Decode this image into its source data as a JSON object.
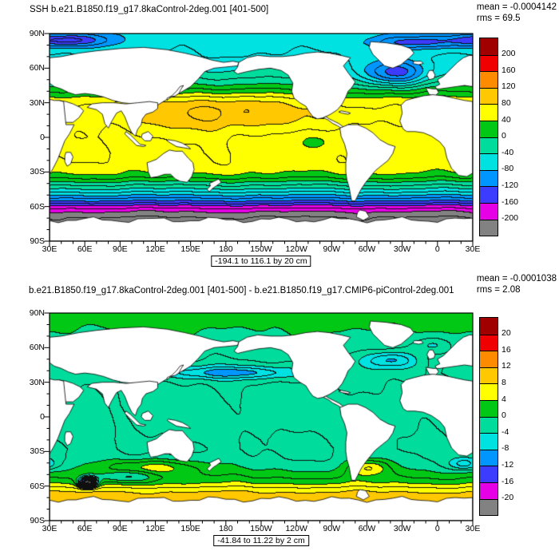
{
  "page": {
    "bg": "#ffffff"
  },
  "axes": {
    "x_ticks": [
      {
        "label": "30E",
        "lon": 30
      },
      {
        "label": "60E",
        "lon": 60
      },
      {
        "label": "90E",
        "lon": 90
      },
      {
        "label": "120E",
        "lon": 120
      },
      {
        "label": "150E",
        "lon": 150
      },
      {
        "label": "180",
        "lon": 180
      },
      {
        "label": "150W",
        "lon": 210
      },
      {
        "label": "120W",
        "lon": 240
      },
      {
        "label": "90W",
        "lon": 270
      },
      {
        "label": "60W",
        "lon": 300
      },
      {
        "label": "30W",
        "lon": 330
      },
      {
        "label": "0",
        "lon": 360
      },
      {
        "label": "30E",
        "lon": 390
      }
    ],
    "y_ticks": [
      {
        "label": "90N",
        "lat": 90
      },
      {
        "label": "60N",
        "lat": 60
      },
      {
        "label": "30N",
        "lat": 30
      },
      {
        "label": "0",
        "lat": 0
      },
      {
        "label": "30S",
        "lat": -30
      },
      {
        "label": "60S",
        "lat": -60
      },
      {
        "label": "90S",
        "lat": -90
      }
    ]
  },
  "panels": [
    {
      "title": "SSH b.e21.B1850.f19_g17.8kaControl-2deg.001 [401-500]",
      "mean": "mean = -0.0004142",
      "rms": "rms = 69.5",
      "caption": "-194.1 to 116.1 by 20 cm",
      "colorbar_labels": [
        "200",
        "160",
        "120",
        "80",
        "40",
        "0",
        "-40",
        "-80",
        "-120",
        "-160",
        "-200"
      ]
    },
    {
      "title": "b.e21.B1850.f19_g17.8kaControl-2deg.001 [401-500] - b.e21.B1850.f19_g17.CMIP6-piControl-2deg.001",
      "mean": "mean = -0.0001038",
      "rms": "rms = 2.08",
      "caption": "-41.84 to 11.22 by 2 cm",
      "colorbar_labels": [
        "20",
        "16",
        "12",
        "8",
        "4",
        "0",
        "-4",
        "-8",
        "-12",
        "-16",
        "-20"
      ]
    }
  ],
  "chart_data": [
    {
      "type": "heatmap",
      "subtype": "filled_contour_world_map",
      "title": "SSH b.e21.B1850.f19_g17.8kaControl-2deg.001 [401-500]",
      "units": "cm",
      "stats": {
        "mean": -0.0004142,
        "rms": 69.5,
        "min": -194.1,
        "max": 116.1,
        "contour_interval": 20
      },
      "lon_range": [
        30,
        390
      ],
      "lat_range": [
        -90,
        90
      ],
      "fill_levels": [
        -200,
        -160,
        -120,
        -80,
        -40,
        0,
        40,
        80,
        120,
        160,
        200
      ],
      "line_interval": 20,
      "palette": [
        "#828282",
        "#e600e6",
        "#3c3cff",
        "#0096ff",
        "#00e1e1",
        "#00dc9b",
        "#00c814",
        "#ffff00",
        "#ffc800",
        "#ff8c00",
        "#f00000",
        "#a00000"
      ],
      "field": {
        "zonal_profile": [
          [
            -90,
            -235
          ],
          [
            -78,
            -232
          ],
          [
            -70,
            -222
          ],
          [
            -64,
            -196
          ],
          [
            -60,
            -166
          ],
          [
            -56,
            -126
          ],
          [
            -52,
            -92
          ],
          [
            -48,
            -62
          ],
          [
            -44,
            -34
          ],
          [
            -40,
            -8
          ],
          [
            -36,
            18
          ],
          [
            -32,
            38
          ],
          [
            -28,
            48
          ],
          [
            -22,
            54
          ],
          [
            -14,
            56
          ],
          [
            -6,
            55
          ],
          [
            0,
            56
          ],
          [
            8,
            61
          ],
          [
            16,
            65
          ],
          [
            24,
            64
          ],
          [
            30,
            56
          ],
          [
            34,
            44
          ],
          [
            38,
            26
          ],
          [
            42,
            10
          ],
          [
            46,
            -6
          ],
          [
            50,
            -18
          ],
          [
            54,
            -30
          ],
          [
            58,
            -40
          ],
          [
            64,
            -50
          ],
          [
            70,
            -58
          ],
          [
            78,
            -64
          ],
          [
            90,
            -70
          ]
        ],
        "anomalies": [
          [
            175,
            22,
            50,
            12,
            42
          ],
          [
            325,
            55,
            20,
            8,
            -95
          ],
          [
            265,
            -3,
            22,
            7,
            -22
          ],
          [
            45,
            84,
            25,
            4,
            -80
          ],
          [
            340,
            82,
            25,
            4,
            -60
          ],
          [
            60,
            -10,
            25,
            8,
            6
          ]
        ],
        "wave_amp": 8
      }
    },
    {
      "type": "heatmap",
      "subtype": "filled_contour_world_map",
      "title": "b.e21.B1850.f19_g17.8kaControl-2deg.001 [401-500] - b.e21.B1850.f19_g17.CMIP6-piControl-2deg.001",
      "units": "cm",
      "stats": {
        "mean": -0.0001038,
        "rms": 2.08,
        "min": -41.84,
        "max": 11.22,
        "contour_interval": 2
      },
      "lon_range": [
        30,
        390
      ],
      "lat_range": [
        -90,
        90
      ],
      "fill_levels": [
        -20,
        -16,
        -12,
        -8,
        -4,
        0,
        4,
        8,
        12,
        16,
        20
      ],
      "line_interval": 2,
      "palette": [
        "#828282",
        "#e600e6",
        "#3c3cff",
        "#0096ff",
        "#00e1e1",
        "#00dc9b",
        "#00c814",
        "#ffff00",
        "#ffc800",
        "#ff8c00",
        "#f00000",
        "#a00000"
      ],
      "field": {
        "zonal_profile": [
          [
            -90,
            9
          ],
          [
            -75,
            9
          ],
          [
            -68,
            9
          ],
          [
            -63,
            7
          ],
          [
            -58,
            4
          ],
          [
            -53,
            2
          ],
          [
            -48,
            0.5
          ],
          [
            -43,
            -0.8
          ],
          [
            -36,
            -1.8
          ],
          [
            -28,
            -2.2
          ],
          [
            -20,
            -2
          ],
          [
            -10,
            -1.4
          ],
          [
            0,
            -1.2
          ],
          [
            10,
            -1.2
          ],
          [
            20,
            -1.5
          ],
          [
            30,
            -2
          ],
          [
            38,
            -2.6
          ],
          [
            45,
            -2.2
          ],
          [
            52,
            -1.5
          ],
          [
            60,
            -0.8
          ],
          [
            70,
            -0.3
          ],
          [
            80,
            0.5
          ],
          [
            90,
            1
          ]
        ],
        "anomalies": [
          [
            63,
            -57,
            5,
            3,
            -26
          ],
          [
            95,
            -52,
            18,
            4,
            -5
          ],
          [
            185,
            38,
            38,
            4,
            -6.5
          ],
          [
            320,
            49,
            16,
            5,
            -6.5
          ],
          [
            383,
            -41,
            9,
            4,
            -6
          ],
          [
            118,
            -44,
            28,
            5,
            6
          ],
          [
            302,
            -44,
            12,
            5,
            6.5
          ],
          [
            355,
            62,
            12,
            5,
            -4
          ]
        ],
        "wave_amp": 0.9
      }
    }
  ]
}
